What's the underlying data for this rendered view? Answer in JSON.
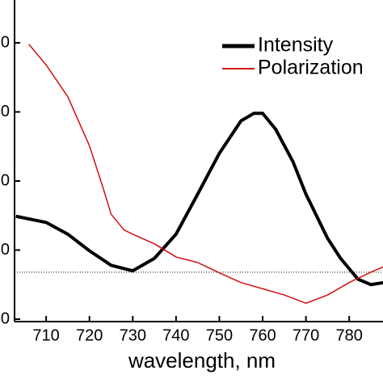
{
  "chart_data": {
    "type": "line",
    "xlabel": "wavelength, nm",
    "xlim": [
      702.7,
      787.8
    ],
    "xticks": [
      710,
      720,
      730,
      740,
      750,
      760,
      770,
      780
    ],
    "ylim": [
      0,
      4.4
    ],
    "yticks": [
      {
        "value": 0,
        "label": "0"
      },
      {
        "value": 1,
        "label": "0"
      },
      {
        "value": 2,
        "label": "0"
      },
      {
        "value": 3,
        "label": "0"
      },
      {
        "value": 4,
        "label": "0"
      }
    ],
    "hline": 0.68,
    "legend": "upper right",
    "series": [
      {
        "name": "Intensity",
        "color": "#000000",
        "x": [
          703,
          710,
          715,
          720,
          725,
          730,
          735,
          740,
          745,
          750,
          755,
          758,
          760,
          763,
          767,
          770,
          775,
          778,
          782,
          785,
          788
        ],
        "values": [
          1.49,
          1.4,
          1.23,
          0.99,
          0.78,
          0.7,
          0.88,
          1.23,
          1.81,
          2.4,
          2.87,
          2.98,
          2.98,
          2.75,
          2.28,
          1.81,
          1.17,
          0.88,
          0.58,
          0.5,
          0.53
        ]
      },
      {
        "name": "Polarization",
        "color": "#d01010",
        "x": [
          706,
          710,
          715,
          720,
          723,
          725,
          728,
          730,
          735,
          740,
          745,
          750,
          755,
          760,
          765,
          770,
          775,
          780,
          785,
          788
        ],
        "values": [
          3.98,
          3.68,
          3.22,
          2.51,
          1.93,
          1.52,
          1.29,
          1.23,
          1.09,
          0.9,
          0.82,
          0.67,
          0.53,
          0.44,
          0.35,
          0.23,
          0.35,
          0.53,
          0.68,
          0.76
        ]
      }
    ]
  }
}
